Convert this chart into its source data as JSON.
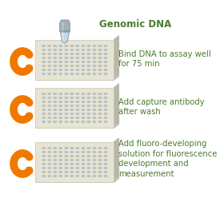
{
  "background_color": "#ffffff",
  "text_color": "#4a7c2f",
  "arrow_color": "#f07800",
  "title": "Genomic DNA",
  "steps": [
    "Bind DNA to assay well\nfor 75 min",
    "Add capture antibody\nafter wash",
    "Add fluoro-developing\nsolution for fluorescence\ndevelopment and\nmeasurement"
  ],
  "plate_color": "#e8e4d4",
  "plate_edge_color": "#c8c4b0",
  "well_color": "#b8c8cc",
  "tube_body_color": "#c0d4de",
  "tube_cap_color": "#9aacb0",
  "figsize": [
    2.8,
    2.58
  ],
  "dpi": 100,
  "text_fontsize": 7.2,
  "title_fontsize": 8.5
}
